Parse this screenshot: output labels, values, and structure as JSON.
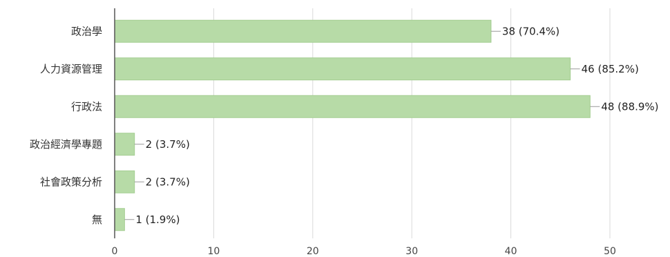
{
  "chart_data": {
    "type": "bar",
    "orientation": "horizontal",
    "categories": [
      "政治學",
      "人力資源管理",
      "行政法",
      "政治經濟學專題",
      "社會政策分析",
      "無"
    ],
    "values": [
      38,
      46,
      48,
      2,
      2,
      1
    ],
    "data_labels": [
      "38 (70.4%)",
      "46 (85.2%)",
      "48 (88.9%)",
      "2 (3.7%)",
      "2 (3.7%)",
      "1 (1.9%)"
    ],
    "x_ticks": [
      "0",
      "10",
      "20",
      "30",
      "40",
      "50"
    ],
    "xlim": [
      0,
      50
    ],
    "grid": true,
    "bar_color": "#b7dba7",
    "bar_edge_color": "#a3cd90"
  }
}
